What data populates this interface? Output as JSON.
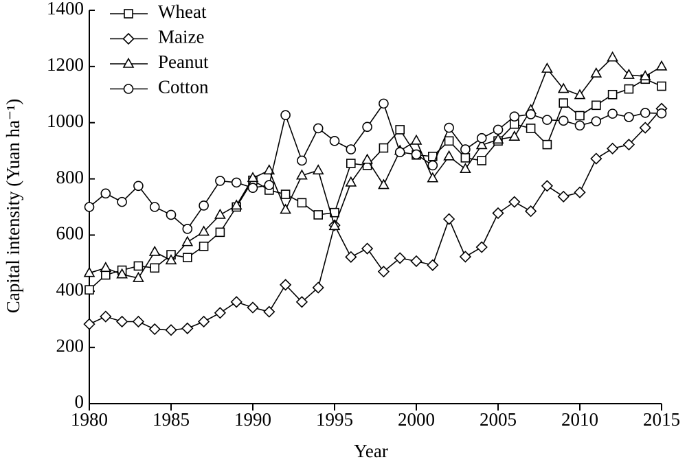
{
  "chart_data": {
    "type": "line",
    "xlabel": "Year",
    "ylabel": "Capital intensity (Yuan ha⁻¹)",
    "x": [
      1980,
      1981,
      1982,
      1983,
      1984,
      1985,
      1986,
      1987,
      1988,
      1989,
      1990,
      1991,
      1992,
      1993,
      1994,
      1995,
      1996,
      1997,
      1998,
      1999,
      2000,
      2001,
      2002,
      2003,
      2004,
      2005,
      2006,
      2007,
      2008,
      2009,
      2010,
      2011,
      2012,
      2013,
      2014,
      2015
    ],
    "xlim": [
      1980,
      2015
    ],
    "xticks": [
      1980,
      1985,
      1990,
      1995,
      2000,
      2005,
      2010,
      2015
    ],
    "ylim": [
      0,
      1400
    ],
    "yticks": [
      0,
      200,
      400,
      600,
      800,
      1000,
      1200,
      1400
    ],
    "legend": "top-left",
    "series": [
      {
        "name": "Wheat",
        "color": "#000000",
        "marker": "square",
        "values": [
          405,
          458,
          475,
          490,
          483,
          530,
          520,
          560,
          610,
          700,
          795,
          760,
          745,
          715,
          672,
          680,
          855,
          848,
          910,
          975,
          885,
          880,
          935,
          875,
          865,
          935,
          995,
          980,
          922,
          1070,
          1025,
          1062,
          1100,
          1120,
          1155,
          1130
        ]
      },
      {
        "name": "Maize",
        "color": "#000000",
        "marker": "diamond",
        "values": [
          283,
          310,
          292,
          292,
          265,
          262,
          268,
          292,
          323,
          362,
          342,
          327,
          423,
          362,
          413,
          635,
          522,
          552,
          470,
          518,
          507,
          493,
          657,
          523,
          557,
          678,
          718,
          685,
          775,
          737,
          752,
          872,
          908,
          922,
          982,
          1050
        ]
      },
      {
        "name": "Peanut",
        "color": "#000000",
        "marker": "triangle",
        "values": [
          465,
          483,
          460,
          447,
          540,
          510,
          575,
          612,
          672,
          705,
          803,
          830,
          690,
          812,
          830,
          632,
          787,
          868,
          778,
          900,
          936,
          802,
          880,
          835,
          920,
          940,
          950,
          1045,
          1192,
          1120,
          1098,
          1175,
          1232,
          1170,
          1165,
          1200
        ]
      },
      {
        "name": "Cotton",
        "color": "#000000",
        "marker": "circle",
        "values": [
          700,
          748,
          718,
          775,
          700,
          672,
          622,
          705,
          793,
          787,
          768,
          778,
          1027,
          865,
          980,
          935,
          905,
          985,
          1068,
          895,
          887,
          848,
          982,
          905,
          945,
          975,
          1022,
          1030,
          1010,
          1007,
          990,
          1005,
          1032,
          1020,
          1035,
          1033
        ]
      }
    ]
  }
}
